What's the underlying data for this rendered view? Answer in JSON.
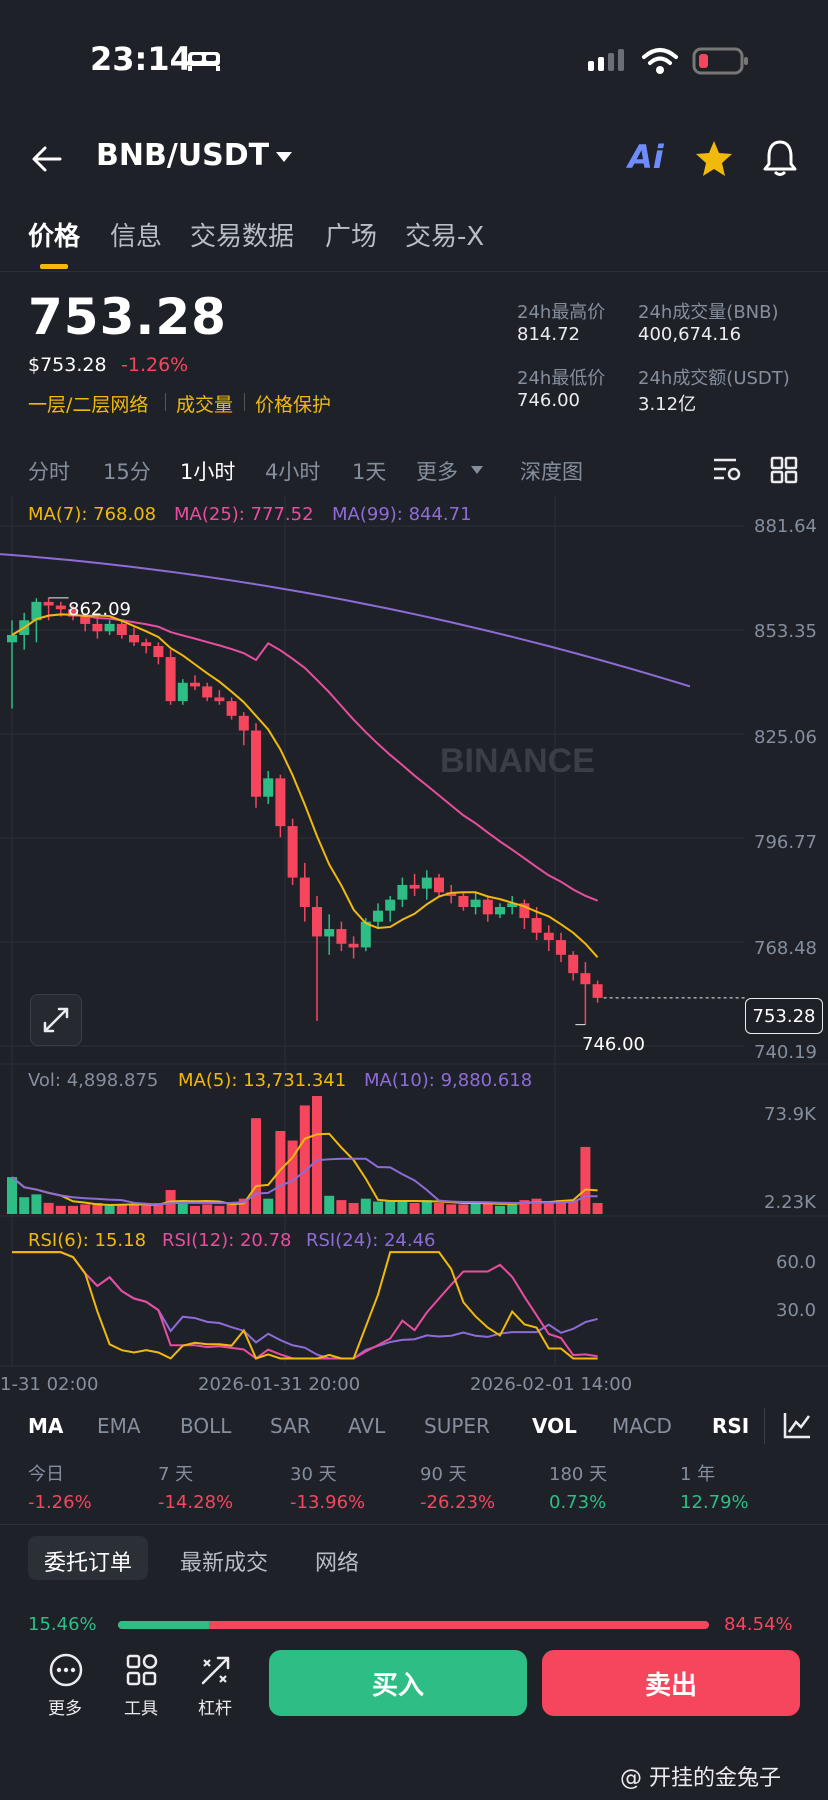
{
  "status_bar": {
    "time": "23:14"
  },
  "header": {
    "pair": "BNB/USDT",
    "ai_label": "Ai"
  },
  "tabs": [
    "价格",
    "信息",
    "交易数据",
    "广场",
    "交易-X"
  ],
  "price": {
    "last": "753.28",
    "usd": "$753.28",
    "change": "-1.26%"
  },
  "links": [
    "一层/二层网络",
    "成交量",
    "价格保护"
  ],
  "stats": {
    "high_label": "24h最高价",
    "high": "814.72",
    "vol_bnb_label": "24h成交量(BNB)",
    "vol_bnb": "400,674.16",
    "low_label": "24h最低价",
    "low": "746.00",
    "vol_usdt_label": "24h成交额(USDT)",
    "vol_usdt": "3.12亿"
  },
  "intervals": [
    "分时",
    "15分",
    "1小时",
    "4小时",
    "1天",
    "更多",
    "深度图"
  ],
  "active_interval": "1小时",
  "chart": {
    "ma_legend": {
      "ma7": "MA(7): 768.08",
      "ma25": "MA(25): 777.52",
      "ma99": "MA(99): 844.71"
    },
    "price_ticks": [
      "881.64",
      "853.35",
      "825.06",
      "796.77",
      "768.48",
      "740.19"
    ],
    "current_price_tag": "753.28",
    "high_marker": "862.09",
    "low_marker": "746.00",
    "watermark": "BINANCE",
    "vol_legend": {
      "vol": "Vol: 4,898.875",
      "ma5": "MA(5): 13,731.341",
      "ma10": "MA(10): 9,880.618"
    },
    "vol_ticks": [
      "73.9K",
      "2.23K"
    ],
    "rsi_legend": {
      "rsi6": "RSI(6): 15.18",
      "rsi12": "RSI(12): 20.78",
      "rsi24": "RSI(24): 24.46"
    },
    "rsi_ticks": [
      "60.0",
      "30.0"
    ],
    "time_ticks": [
      "1-31 02:00",
      "2026-01-31 20:00",
      "2026-02-01 14:00"
    ],
    "colors": {
      "up": "#2ebd85",
      "down": "#f6465d",
      "ma7": "#f0b90b",
      "ma25": "#e84ea0",
      "ma99": "#8e6cd8"
    }
  },
  "chart_data": {
    "type": "candlestick",
    "interval": "1h",
    "price_axis": [
      740.19,
      881.64
    ],
    "labeled_high": 862.09,
    "labeled_low": 746.0,
    "last_price": 753.28,
    "candles_ohlc": [
      [
        850,
        856,
        832,
        852
      ],
      [
        852,
        858,
        848,
        856
      ],
      [
        856,
        862,
        850,
        861
      ],
      [
        861,
        862.09,
        856,
        860
      ],
      [
        860,
        861,
        857,
        859
      ],
      [
        859,
        860,
        856,
        857
      ],
      [
        857,
        858,
        853,
        855
      ],
      [
        855,
        857,
        851,
        853
      ],
      [
        853,
        856,
        852,
        855
      ],
      [
        855,
        856,
        851,
        852
      ],
      [
        852,
        854,
        849,
        850
      ],
      [
        850,
        851,
        847,
        849
      ],
      [
        849,
        850,
        844,
        846
      ],
      [
        846,
        848,
        833,
        834
      ],
      [
        834,
        840,
        833,
        839
      ],
      [
        839,
        841,
        837,
        838
      ],
      [
        838,
        839,
        834,
        835
      ],
      [
        835,
        837,
        833,
        834
      ],
      [
        834,
        835,
        829,
        830
      ],
      [
        830,
        831,
        822,
        826
      ],
      [
        826,
        828,
        805,
        808
      ],
      [
        808,
        815,
        806,
        813
      ],
      [
        813,
        814,
        797,
        800
      ],
      [
        800,
        802,
        784,
        786
      ],
      [
        786,
        790,
        774,
        778
      ],
      [
        778,
        781,
        747,
        770
      ],
      [
        770,
        776,
        765,
        772
      ],
      [
        772,
        774,
        766,
        768
      ],
      [
        768,
        770,
        764,
        767
      ],
      [
        767,
        775,
        766,
        774
      ],
      [
        774,
        779,
        772,
        777
      ],
      [
        777,
        781,
        774,
        780
      ],
      [
        780,
        786,
        778,
        784
      ],
      [
        784,
        787,
        781,
        783
      ],
      [
        783,
        788,
        780,
        786
      ],
      [
        786,
        787,
        781,
        782
      ],
      [
        782,
        784,
        779,
        781
      ],
      [
        781,
        782,
        777,
        778
      ],
      [
        778,
        782,
        776,
        780
      ],
      [
        780,
        781,
        774,
        776
      ],
      [
        776,
        779,
        775,
        778
      ],
      [
        778,
        781,
        776,
        779
      ],
      [
        779,
        780,
        772,
        775
      ],
      [
        775,
        778,
        769,
        771
      ],
      [
        771,
        773,
        766,
        769
      ],
      [
        769,
        771,
        763,
        765
      ],
      [
        765,
        766,
        758,
        760
      ],
      [
        760,
        763,
        746,
        757
      ],
      [
        757,
        758,
        752,
        753.28
      ]
    ],
    "indicators": {
      "ma7": 768.08,
      "ma25": 777.52,
      "ma99": 844.71,
      "vol": 4898.875,
      "vol_ma5": 13731.341,
      "vol_ma10": 9880.618,
      "rsi6": 15.18,
      "rsi12": 20.78,
      "rsi24": 24.46
    },
    "volume_axis": [
      2230,
      73900
    ],
    "rsi_axis_ticks": [
      30.0,
      60.0
    ],
    "x_ticks": [
      "1-31 02:00",
      "2026-01-31 20:00",
      "2026-02-01 14:00"
    ]
  },
  "indicator_tabs": [
    "MA",
    "EMA",
    "BOLL",
    "SAR",
    "AVL",
    "SUPER",
    "VOL",
    "MACD",
    "RSI"
  ],
  "performance": [
    {
      "label": "今日",
      "value": "-1.26%",
      "color": "red"
    },
    {
      "label": "7 天",
      "value": "-14.28%",
      "color": "red"
    },
    {
      "label": "30 天",
      "value": "-13.96%",
      "color": "red"
    },
    {
      "label": "90 天",
      "value": "-26.23%",
      "color": "red"
    },
    {
      "label": "180 天",
      "value": "0.73%",
      "color": "green"
    },
    {
      "label": "1 年",
      "value": "12.79%",
      "color": "green"
    }
  ],
  "order_tabs": [
    "委托订单",
    "最新成交",
    "网络"
  ],
  "order_ratio": {
    "buy": "15.46%",
    "sell": "84.54%",
    "buy_fraction": 0.1546
  },
  "bottom": {
    "more": "更多",
    "tools": "工具",
    "leverage": "杠杆",
    "buy": "买入",
    "sell": "卖出"
  },
  "watermark_credit": "@ 开挂的金兔子"
}
